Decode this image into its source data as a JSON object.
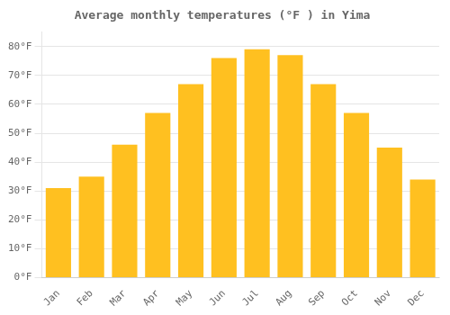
{
  "chart_data": {
    "type": "bar",
    "title": "Average monthly temperatures (°F ) in Yima",
    "categories": [
      "Jan",
      "Feb",
      "Mar",
      "Apr",
      "May",
      "Jun",
      "Jul",
      "Aug",
      "Sep",
      "Oct",
      "Nov",
      "Dec"
    ],
    "values": [
      31,
      35,
      46,
      57,
      67,
      76,
      79,
      77,
      67,
      57,
      45,
      34
    ],
    "color": "#FFC020",
    "ylim": [
      0,
      85
    ],
    "yticks": [
      {
        "value": 0,
        "label": "0°F"
      },
      {
        "value": 10,
        "label": "10°F"
      },
      {
        "value": 20,
        "label": "20°F"
      },
      {
        "value": 30,
        "label": "30°F"
      },
      {
        "value": 40,
        "label": "40°F"
      },
      {
        "value": 50,
        "label": "50°F"
      },
      {
        "value": 60,
        "label": "60°F"
      },
      {
        "value": 70,
        "label": "70°F"
      },
      {
        "value": 80,
        "label": "80°F"
      }
    ],
    "grid": true
  }
}
